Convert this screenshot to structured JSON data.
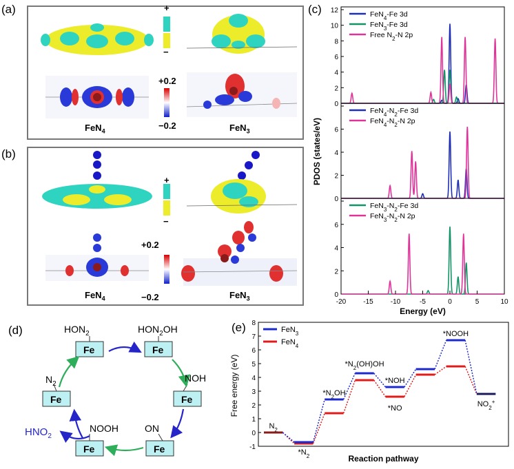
{
  "panels": {
    "a": {
      "letter": "(a)",
      "label_left": "FeN",
      "label_left_sub": "4",
      "label_right": "FeN",
      "label_right_sub": "3",
      "bar_plus": "+",
      "bar_minus": "−",
      "cb_max": "+0.2",
      "cb_min": "−0.2"
    },
    "b": {
      "letter": "(b)",
      "label_left": "FeN",
      "label_left_sub": "4",
      "label_right": "FeN",
      "label_right_sub": "3",
      "bar_plus": "+",
      "bar_minus": "−",
      "cb_max": "+0.2",
      "cb_min": "−0.2"
    },
    "c": {
      "letter": "(c)"
    },
    "d": {
      "letter": "(d)"
    },
    "e": {
      "letter": "(e)"
    }
  },
  "colors": {
    "fen4": "#1f2fb5",
    "fen3": "#139466",
    "n2p": "#e0339a",
    "yellow": "#ecec2a",
    "cyan": "#2fd4c0",
    "path_blue": "#1d2acb",
    "path_red": "#e01b1b",
    "arrow_blue": "#2525c8",
    "arrow_green": "#2eae5a",
    "fe_box": "#bdf0f2"
  },
  "pdos_y_title": "PDOS (states/eV)",
  "pdos_x_title": "Energy (eV)",
  "fe_box_text": "Fe",
  "cycle": {
    "hon2": {
      "top": "HON",
      "sub": "2",
      "tail": ""
    },
    "hon2oh": {
      "top": "HON",
      "sub": "2",
      "tail": "OH"
    },
    "noh": "NOH",
    "on": "ON",
    "nooh": "NOOH",
    "n2": {
      "top": "N",
      "sub": "2"
    },
    "hno2": {
      "top": "HNO",
      "sub": "2"
    }
  },
  "chart_data": [
    {
      "type": "line",
      "panel": "c-top",
      "series": [
        {
          "name": "FeN4-Fe 3d",
          "color": "#1f2fb5"
        },
        {
          "name": "FeN3-Fe 3d",
          "color": "#139466"
        },
        {
          "name": "Free N2-N 2p",
          "color": "#e0339a"
        }
      ],
      "legend": [
        {
          "main": "FeN",
          "s1": "4",
          "rest": "-Fe 3d"
        },
        {
          "main": "FeN",
          "s1": "3",
          "rest": "-Fe 3d"
        },
        {
          "main": "Free N",
          "s1": "2",
          "rest": "-N 2p"
        }
      ],
      "xlim": [
        -20,
        10
      ],
      "ylim": [
        0,
        12
      ],
      "yticks": [
        "0",
        "2",
        "4",
        "6",
        "8",
        "10",
        "12"
      ],
      "peaks": {
        "FeN4-Fe 3d": [
          [
            -1.5,
            0.4
          ],
          [
            0,
            10.2
          ],
          [
            1.5,
            0.6
          ],
          [
            3,
            2.4
          ]
        ],
        "FeN3-Fe 3d": [
          [
            -3,
            0.5
          ],
          [
            -1,
            4.3
          ],
          [
            0,
            4.3
          ],
          [
            1.2,
            0.8
          ]
        ],
        "Free N2-N 2p": [
          [
            -18,
            1.3
          ],
          [
            -3.5,
            1.4
          ],
          [
            -1.5,
            8.5
          ],
          [
            0,
            2.5
          ],
          [
            2.8,
            8.5
          ],
          [
            8.3,
            8.3
          ]
        ]
      }
    },
    {
      "type": "line",
      "panel": "c-middle",
      "series": [
        {
          "name": "FeN4-N2-Fe 3d",
          "color": "#1f2fb5"
        },
        {
          "name": "FeN4-N2-N 2p",
          "color": "#e0339a"
        }
      ],
      "legend": [
        {
          "main": "FeN",
          "s1": "4",
          "mid": "-N",
          "s2": "2",
          "rest": "-Fe 3d"
        },
        {
          "main": "FeN",
          "s1": "4",
          "mid": "-N",
          "s2": "2",
          "rest": "-N 2p"
        }
      ],
      "xlim": [
        -20,
        10
      ],
      "ylim": [
        0,
        8
      ],
      "yticks": [
        "0",
        "2",
        "4",
        "6",
        "8"
      ],
      "peaks": {
        "FeN4-N2-Fe 3d": [
          [
            -5,
            0.4
          ],
          [
            0,
            5.8
          ],
          [
            1.5,
            1.6
          ],
          [
            3,
            2.6
          ]
        ],
        "FeN4-N2-N 2p": [
          [
            -11,
            1.1
          ],
          [
            -7,
            4.1
          ],
          [
            -6.3,
            3.2
          ],
          [
            3.2,
            6.2
          ]
        ]
      }
    },
    {
      "type": "line",
      "panel": "c-bottom",
      "series": [
        {
          "name": "FeN3-N2-Fe 3d",
          "color": "#139466"
        },
        {
          "name": "FeN3-N2-N 2p",
          "color": "#e0339a"
        }
      ],
      "legend": [
        {
          "main": "FeN",
          "s1": "3",
          "mid": "-N",
          "s2": "2",
          "rest": "-Fe 3d"
        },
        {
          "main": "FeN",
          "s1": "3",
          "mid": "-N",
          "s2": "2",
          "rest": "-N 2p"
        }
      ],
      "xlim": [
        -20,
        10
      ],
      "ylim": [
        0,
        8
      ],
      "yticks": [
        "0",
        "2",
        "4",
        "6",
        "8"
      ],
      "xticks": [
        "-20",
        "-15",
        "-10",
        "-5",
        "0",
        "5",
        "10"
      ],
      "peaks": {
        "FeN3-N2-Fe 3d": [
          [
            -4,
            0.3
          ],
          [
            0,
            5.8
          ],
          [
            1.5,
            1.5
          ],
          [
            3,
            2.7
          ]
        ],
        "FeN3-N2-N 2p": [
          [
            -11,
            1.1
          ],
          [
            -7.5,
            5.2
          ],
          [
            2.5,
            5.2
          ]
        ]
      }
    },
    {
      "type": "line",
      "panel": "e",
      "ylabel": "Free energy (eV)",
      "xlabel": "Reaction pathway",
      "ylim": [
        -1,
        8
      ],
      "yticks": [
        "-1",
        "0",
        "1",
        "2",
        "3",
        "4",
        "5",
        "6",
        "7",
        "8"
      ],
      "legend": [
        {
          "main": "FeN",
          "sub": "3"
        },
        {
          "main": "FeN",
          "sub": "4"
        }
      ],
      "steps": [
        {
          "label": "N2",
          "FeN3": 0.0,
          "FeN4": 0.0
        },
        {
          "label": "*N2",
          "FeN3": -0.7,
          "FeN4": -0.8
        },
        {
          "label": "*N2OH",
          "FeN3": 2.4,
          "FeN4": 1.4
        },
        {
          "label": "*N2(OH)OH",
          "FeN3": 4.3,
          "FeN4": 3.8
        },
        {
          "label": "*NOH / *NO",
          "FeN3": 3.3,
          "FeN4": 2.6
        },
        {
          "label": "",
          "FeN3": 4.6,
          "FeN4": 4.2
        },
        {
          "label": "*NOOH",
          "FeN3": 6.7,
          "FeN4": 4.8
        },
        {
          "label": "NO2+",
          "FeN3": 2.8,
          "FeN4": 2.8
        }
      ],
      "step_labels": [
        {
          "main": "N",
          "sub": "2"
        },
        {
          "main": "*N",
          "sub": "2"
        },
        {
          "main": "*N",
          "sub": "2",
          "rest": "OH"
        },
        {
          "main": "*N",
          "sub": "2",
          "rest": "(OH)OH"
        },
        {
          "main": "*NOH"
        },
        {
          "main": "*NO"
        },
        {
          "main": "*NOOH"
        },
        {
          "main": "NO",
          "sub": "2",
          "sup": "+"
        }
      ]
    }
  ]
}
